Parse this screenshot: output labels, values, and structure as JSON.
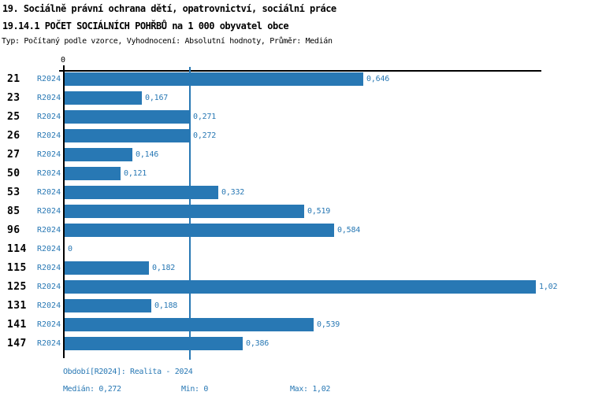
{
  "header": {
    "line1": "19. Sociálně právní ochrana dětí, opatrovnictví, sociální práce",
    "line2": "19.14.1 POČET SOCIÁLNÍCH POHŘBŮ na 1 000 obyvatel obce",
    "subtitle": "Typ: Počítaný podle vzorce, Vyhodnocení: Absolutní hodnoty, Průměr: Medián"
  },
  "colors": {
    "bar": "#2878b4",
    "blue_text": "#2878b4",
    "axis": "#000000"
  },
  "chart_data": {
    "type": "bar",
    "orientation": "horizontal",
    "title": "19.14.1 POČET SOCIÁLNÍCH POHŘBŮ na 1 000 obyvatel obce",
    "series_label": "R2024",
    "categories": [
      "21",
      "23",
      "25",
      "26",
      "27",
      "50",
      "53",
      "85",
      "96",
      "114",
      "115",
      "125",
      "131",
      "141",
      "147"
    ],
    "values": [
      0.646,
      0.167,
      0.271,
      0.272,
      0.146,
      0.121,
      0.332,
      0.519,
      0.584,
      0,
      0.182,
      1.02,
      0.188,
      0.539,
      0.386
    ],
    "value_labels": [
      "0,646",
      "0,167",
      "0,271",
      "0,272",
      "0,146",
      "0,121",
      "0,332",
      "0,519",
      "0,584",
      "0",
      "0,182",
      "1,02",
      "0,188",
      "0,539",
      "0,386"
    ],
    "x_zero_label": "0",
    "xlim": [
      0,
      1.034
    ],
    "median": 0.272,
    "min": 0,
    "max": 1.02,
    "grid": false,
    "legend_position": "none",
    "median_line_shown": true
  },
  "footer": {
    "period": "Období[R2024]: Realita - 2024",
    "median": "Medián: 0,272",
    "min": "Min: 0",
    "max": "Max: 1,02"
  }
}
